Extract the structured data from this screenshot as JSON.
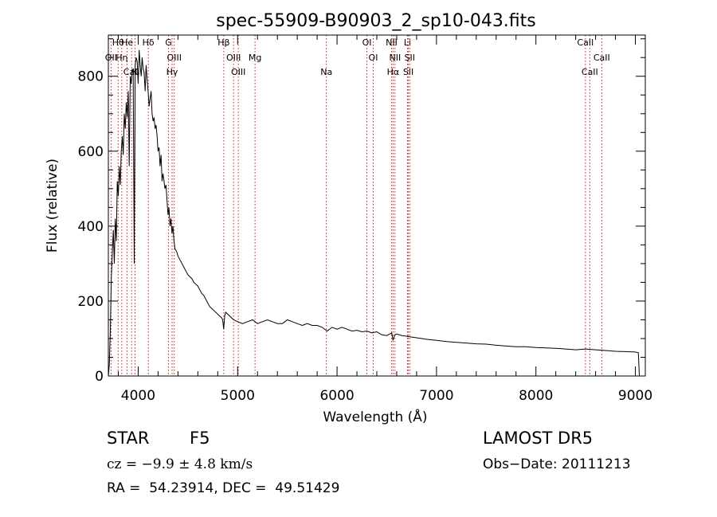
{
  "chart_data": {
    "type": "line",
    "title": "spec-55909-B90903_2_sp10-043.fits",
    "xlabel": "Wavelength (Å)",
    "ylabel": "Flux (relative)",
    "xlim": [
      3700,
      9100
    ],
    "ylim": [
      0,
      910
    ],
    "xticks": [
      4000,
      5000,
      6000,
      7000,
      8000,
      9000
    ],
    "yticks": [
      0,
      200,
      400,
      600,
      800
    ],
    "grid": false,
    "line_color": "#000000",
    "marker_color": "#cc0000",
    "series": [
      {
        "x": [
          3700,
          3710,
          3720,
          3730,
          3740,
          3750,
          3760,
          3770,
          3780,
          3790,
          3800,
          3810,
          3820,
          3830,
          3840,
          3850,
          3860,
          3870,
          3880,
          3890,
          3900,
          3910,
          3920,
          3930,
          3940,
          3950,
          3960,
          3970,
          3980,
          3990,
          4000,
          4010,
          4020,
          4030,
          4040,
          4050,
          4060,
          4070,
          4080,
          4090,
          4100,
          4110,
          4120,
          4130,
          4140,
          4150,
          4160,
          4170,
          4180,
          4190,
          4200,
          4210,
          4220,
          4230,
          4240,
          4250,
          4260,
          4270,
          4280,
          4290,
          4300,
          4310,
          4320,
          4330,
          4340,
          4350,
          4360,
          4370,
          4380,
          4390,
          4400,
          4420,
          4440,
          4460,
          4480,
          4500,
          4520,
          4540,
          4560,
          4580,
          4600,
          4620,
          4640,
          4660,
          4680,
          4700,
          4720,
          4740,
          4760,
          4780,
          4800,
          4820,
          4840,
          4850,
          4860,
          4870,
          4880,
          4900,
          4920,
          4940,
          4960,
          5000,
          5050,
          5100,
          5150,
          5200,
          5250,
          5300,
          5350,
          5400,
          5450,
          5500,
          5550,
          5600,
          5650,
          5700,
          5750,
          5800,
          5850,
          5900,
          5950,
          6000,
          6050,
          6100,
          6150,
          6200,
          6250,
          6300,
          6350,
          6400,
          6450,
          6500,
          6550,
          6563,
          6580,
          6600,
          6650,
          6700,
          6750,
          6800,
          6900,
          7000,
          7100,
          7200,
          7300,
          7400,
          7500,
          7600,
          7700,
          7800,
          7900,
          8000,
          8100,
          8200,
          8300,
          8400,
          8500,
          8600,
          8700,
          8800,
          8900,
          9000,
          9030,
          9040
        ],
        "y": [
          0,
          30,
          120,
          260,
          330,
          390,
          300,
          420,
          360,
          520,
          480,
          560,
          510,
          600,
          640,
          590,
          700,
          660,
          730,
          690,
          760,
          560,
          800,
          780,
          820,
          810,
          300,
          830,
          850,
          840,
          780,
          870,
          830,
          800,
          850,
          820,
          810,
          760,
          830,
          790,
          760,
          720,
          740,
          760,
          700,
          680,
          690,
          660,
          670,
          640,
          600,
          610,
          560,
          590,
          520,
          540,
          520,
          500,
          510,
          470,
          430,
          450,
          400,
          420,
          380,
          400,
          360,
          340,
          335,
          330,
          320,
          310,
          300,
          290,
          280,
          270,
          265,
          260,
          250,
          245,
          240,
          230,
          220,
          215,
          205,
          195,
          185,
          180,
          175,
          170,
          165,
          160,
          155,
          150,
          125,
          160,
          170,
          165,
          160,
          155,
          150,
          145,
          140,
          145,
          150,
          140,
          145,
          150,
          145,
          140,
          140,
          150,
          145,
          140,
          135,
          140,
          135,
          135,
          130,
          120,
          130,
          125,
          130,
          125,
          120,
          122,
          118,
          120,
          115,
          118,
          110,
          108,
          115,
          95,
          110,
          112,
          108,
          106,
          104,
          102,
          98,
          95,
          92,
          90,
          88,
          86,
          85,
          82,
          80,
          78,
          78,
          76,
          75,
          74,
          72,
          70,
          72,
          70,
          68,
          66,
          65,
          64,
          62,
          0
        ]
      }
    ],
    "lines": [
      {
        "label": "Hθ",
        "x": 3798
      },
      {
        "label": "OII",
        "x": 3727
      },
      {
        "label": "CaII",
        "x": 3934
      },
      {
        "label": "He",
        "x": 3889
      },
      {
        "label": "Hη",
        "x": 3835
      },
      {
        "label": "K",
        "x": 3969
      },
      {
        "label": "Hδ",
        "x": 4102
      },
      {
        "label": "OIII",
        "x": 4363
      },
      {
        "label": "Hγ",
        "x": 4341
      },
      {
        "label": "G",
        "x": 4305
      },
      {
        "label": "OIII",
        "x": 4959
      },
      {
        "label": "OIII",
        "x": 5007
      },
      {
        "label": "Hβ",
        "x": 4861
      },
      {
        "label": "Mg",
        "x": 5175
      },
      {
        "label": "Na",
        "x": 5893
      },
      {
        "label": "OI",
        "x": 6300
      },
      {
        "label": "OI",
        "x": 6364
      },
      {
        "label": "Hα",
        "x": 6563
      },
      {
        "label": "NII",
        "x": 6548
      },
      {
        "label": "NII",
        "x": 6583
      },
      {
        "label": "SII",
        "x": 6717
      },
      {
        "label": "Li",
        "x": 6708
      },
      {
        "label": "SII",
        "x": 6731
      },
      {
        "label": "CaII",
        "x": 8542
      },
      {
        "label": "CaII",
        "x": 8498
      },
      {
        "label": "CaII",
        "x": 8662
      }
    ]
  },
  "footer": {
    "class_label": "STAR",
    "subclass": "F5",
    "survey": "LAMOST DR5",
    "cz": "cz = −9.9 ± 4.8 km/s",
    "obs_date": "Obs−Date: 20111213",
    "coords": "RA =  54.23914, DEC =  49.51429"
  }
}
